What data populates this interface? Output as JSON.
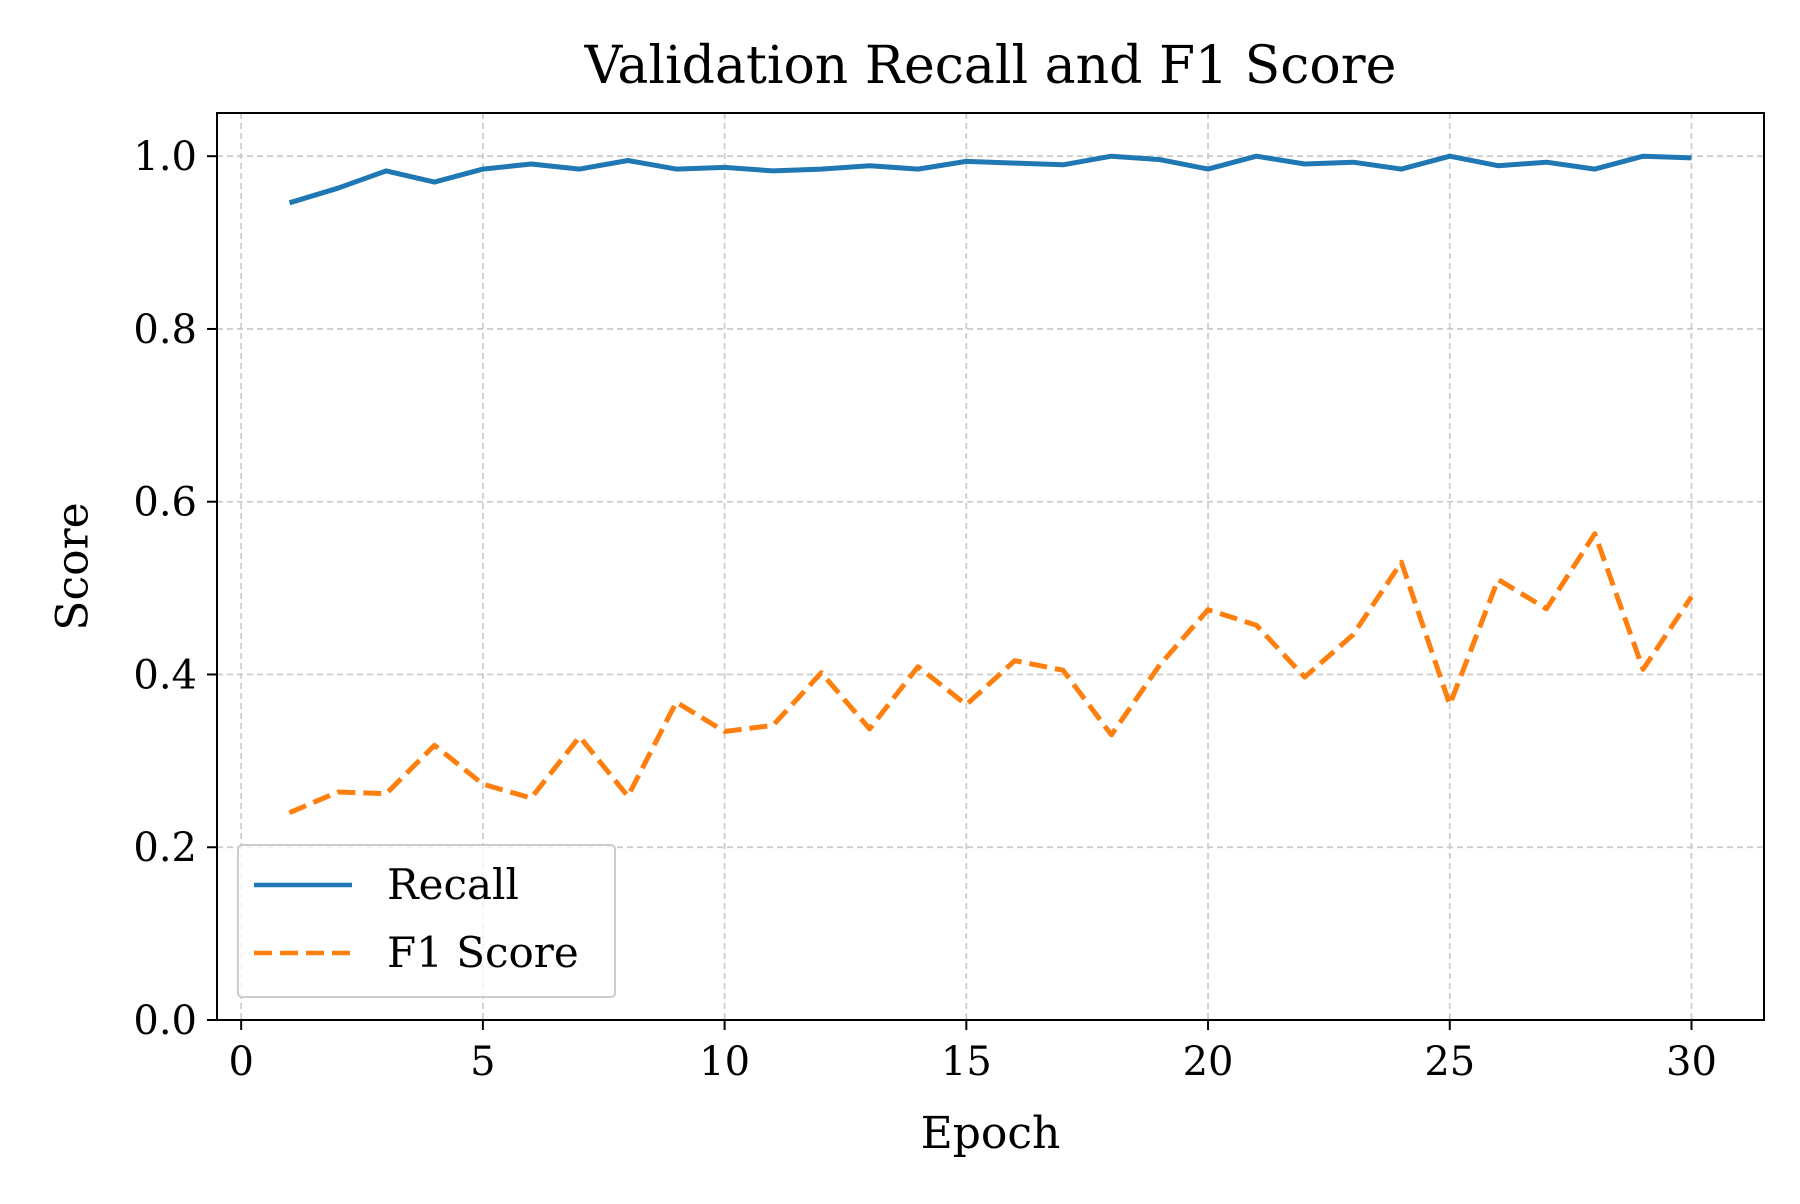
{
  "chart_data": {
    "type": "line",
    "title": "Validation Recall and F1 Score",
    "xlabel": "Epoch",
    "ylabel": "Score",
    "xlim": [
      -0.5,
      31.5
    ],
    "ylim": [
      0.0,
      1.05
    ],
    "xticks": [
      0,
      5,
      10,
      15,
      20,
      25,
      30
    ],
    "xtick_labels": [
      "0",
      "5",
      "10",
      "15",
      "20",
      "25",
      "30"
    ],
    "yticks": [
      0.0,
      0.2,
      0.4,
      0.6,
      0.8,
      1.0
    ],
    "ytick_labels": [
      "0.0",
      "0.2",
      "0.4",
      "0.6",
      "0.8",
      "1.0"
    ],
    "grid": true,
    "legend_position": "lower-left",
    "x": [
      1,
      2,
      3,
      4,
      5,
      6,
      7,
      8,
      9,
      10,
      11,
      12,
      13,
      14,
      15,
      16,
      17,
      18,
      19,
      20,
      21,
      22,
      23,
      24,
      25,
      26,
      27,
      28,
      29,
      30
    ],
    "series": [
      {
        "name": "Recall",
        "color": "#1f77b4",
        "dash": "solid",
        "values": [
          0.946,
          0.963,
          0.983,
          0.97,
          0.985,
          0.991,
          0.985,
          0.995,
          0.985,
          0.987,
          0.983,
          0.985,
          0.989,
          0.985,
          0.994,
          0.992,
          0.99,
          1.0,
          0.996,
          0.985,
          1.0,
          0.991,
          0.993,
          0.985,
          1.0,
          0.989,
          0.993,
          0.985,
          1.0,
          0.998
        ]
      },
      {
        "name": "F1 Score",
        "color": "#ff7f0e",
        "dash": "dashed",
        "values": [
          0.24,
          0.264,
          0.262,
          0.318,
          0.273,
          0.257,
          0.328,
          0.259,
          0.368,
          0.334,
          0.341,
          0.402,
          0.337,
          0.409,
          0.365,
          0.416,
          0.405,
          0.33,
          0.411,
          0.475,
          0.457,
          0.397,
          0.446,
          0.53,
          0.365,
          0.51,
          0.476,
          0.563,
          0.406,
          0.49
        ]
      }
    ]
  }
}
